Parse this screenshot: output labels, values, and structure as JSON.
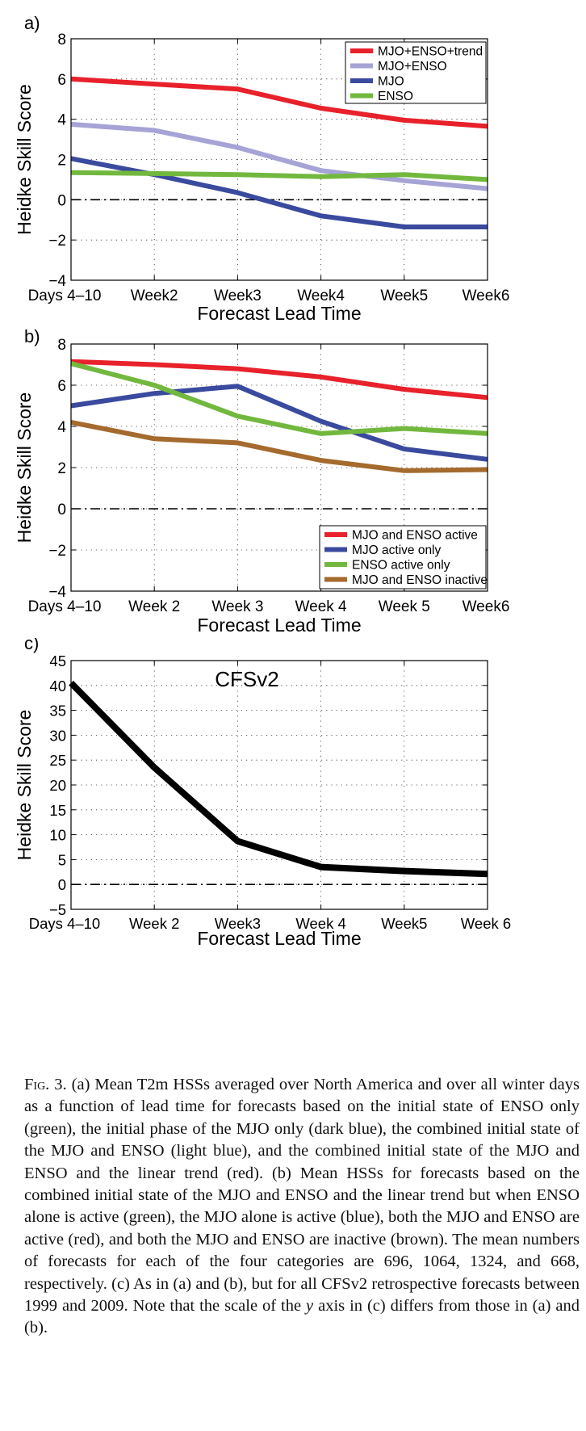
{
  "chart_data": [
    {
      "type": "line",
      "panel_label": "a)",
      "title": "",
      "xlabel": "Forecast Lead Time",
      "ylabel": "Heidke Skill Score",
      "categories": [
        "Days 4–10",
        "Week2",
        "Week3",
        "Week4",
        "Week5",
        "Week6"
      ],
      "ylim": [
        -4,
        8
      ],
      "yticks": [
        "−4",
        "−2",
        "0",
        "2",
        "4",
        "6",
        "8"
      ],
      "yticks_values": [
        -4,
        -2,
        0,
        2,
        4,
        6,
        8
      ],
      "grid": true,
      "legend_position": "top-right",
      "series": [
        {
          "name": "MJO+ENSO+trend",
          "color": "#e8212b",
          "values": [
            6.0,
            5.75,
            5.5,
            4.55,
            3.95,
            3.65
          ]
        },
        {
          "name": "MJO+ENSO",
          "color": "#a6a3d6",
          "values": [
            3.75,
            3.45,
            2.6,
            1.45,
            0.95,
            0.55
          ]
        },
        {
          "name": "MJO",
          "color": "#3a4a9e",
          "values": [
            2.05,
            1.25,
            0.35,
            -0.8,
            -1.35,
            -1.35
          ]
        },
        {
          "name": "ENSO",
          "color": "#72b83e",
          "values": [
            1.35,
            1.3,
            1.25,
            1.15,
            1.25,
            1.0
          ]
        }
      ],
      "reference_line": 0
    },
    {
      "type": "line",
      "panel_label": "b)",
      "title": "",
      "xlabel": "Forecast Lead Time",
      "ylabel": "Heidke Skill Score",
      "categories": [
        "Days 4–10",
        "Week 2",
        "Week 3",
        "Week 4",
        "Week 5",
        "Week6"
      ],
      "ylim": [
        -4,
        8
      ],
      "yticks": [
        "−4",
        "−2",
        "0",
        "2",
        "4",
        "6",
        "8"
      ],
      "yticks_values": [
        -4,
        -2,
        0,
        2,
        4,
        6,
        8
      ],
      "grid": true,
      "legend_position": "bottom-right",
      "series": [
        {
          "name": "MJO and ENSO active",
          "color": "#e8212b",
          "values": [
            7.15,
            7.0,
            6.8,
            6.4,
            5.8,
            5.4
          ]
        },
        {
          "name": "MJO active only",
          "color": "#3a4a9e",
          "values": [
            5.0,
            5.6,
            5.95,
            4.25,
            2.9,
            2.4
          ]
        },
        {
          "name": "ENSO active only",
          "color": "#72b83e",
          "values": [
            7.05,
            6.0,
            4.5,
            3.65,
            3.9,
            3.65
          ]
        },
        {
          "name": "MJO and ENSO inactive",
          "color": "#a56a2e",
          "values": [
            4.2,
            3.4,
            3.2,
            2.35,
            1.85,
            1.9
          ]
        }
      ],
      "reference_line": 0
    },
    {
      "type": "line",
      "panel_label": "c)",
      "title": "CFSv2",
      "xlabel": "Forecast Lead Time",
      "ylabel": "Heidke Skill Score",
      "categories": [
        "Days 4–10",
        "Week 2",
        "Week3",
        "Week 4",
        "Week5",
        "Week 6"
      ],
      "ylim": [
        -5,
        45
      ],
      "yticks": [
        "−5",
        "0",
        "5",
        "10",
        "15",
        "20",
        "25",
        "30",
        "35",
        "40",
        "45"
      ],
      "yticks_values": [
        -5,
        0,
        5,
        10,
        15,
        20,
        25,
        30,
        35,
        40,
        45
      ],
      "grid": true,
      "series": [
        {
          "color": "#000000",
          "values": [
            40.5,
            23.5,
            8.7,
            3.5,
            2.7,
            2.1
          ]
        }
      ],
      "reference_line": 0
    }
  ],
  "caption": {
    "fig_label": "Fig. 3.",
    "text_before_italic": " (a) Mean T2m HSSs averaged over North America and over all winter days as a function of lead time for forecasts based on the initial state of ENSO only (green), the initial phase of the MJO only (dark blue), the combined initial state of the MJO and ENSO (light blue), and the combined initial state of the MJO and ENSO and the linear trend (red). (b) Mean HSSs for forecasts based on the combined initial state of the MJO and ENSO and the linear trend but when ENSO alone is active (green), the MJO alone is active (blue), both the MJO and ENSO are active (red), and both the MJO and ENSO are inactive (brown). The mean numbers of forecasts for each of the four categories are 696, 1064, 1324, and 668, respectively. (c) As in (a) and (b), but for all CFSv2 retrospective forecasts between 1999 and 2009. Note that the scale of the ",
    "italic_word": "y",
    "text_after_italic": " axis in (c) differs from those in (a) and (b)."
  }
}
